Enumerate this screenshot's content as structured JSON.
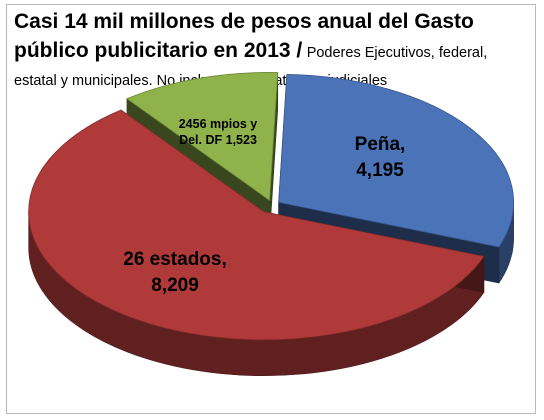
{
  "title": {
    "main": "Casi 14 mil millones de pesos anual del Gasto público publicitario en 2013 /",
    "sub": "Poderes Ejecutivos, federal, estatal y municipales. No incluyen Legislativos y judiciales"
  },
  "chart_data": {
    "type": "pie",
    "style": "3d-exploded",
    "slices": [
      {
        "label_lines": [
          "Peña,",
          "4,195"
        ],
        "value": 4195,
        "color": "#4a73b8"
      },
      {
        "label_lines": [
          "26 estados,",
          "8,209"
        ],
        "value": 8209,
        "color": "#b03a3a"
      },
      {
        "label_lines": [
          "2456 mpios y",
          "Del. DF 1,523"
        ],
        "value": 1523,
        "color": "#8fb24a"
      }
    ]
  }
}
